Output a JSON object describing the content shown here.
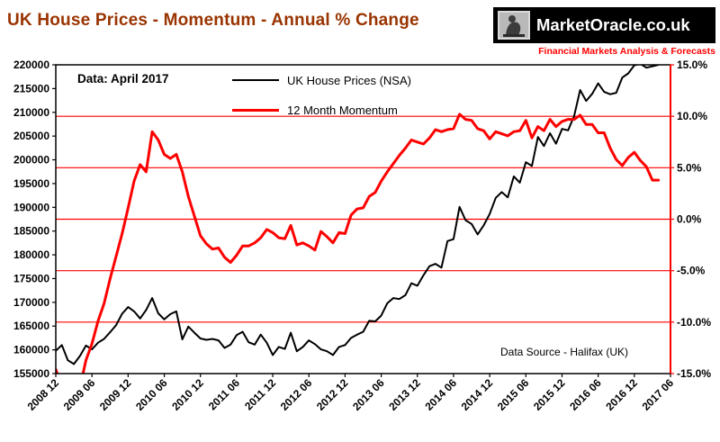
{
  "logo": {
    "text": "MarketOracle.co.uk",
    "tagline": "Financial Markets Analysis & Forecasts"
  },
  "chart_data": {
    "type": "line",
    "title": "UK House Prices - Momentum - Annual % Change",
    "data_note": "Data:  April 2017",
    "source_note": "Data Source - Halifax (UK)",
    "legend_position": "top-inside",
    "grid": "horizontal-red-lines",
    "x_start": "2008-12",
    "x_end": "2017-04",
    "x_axis_total_units": 102,
    "x_tick_labels": [
      "2008 12",
      "2009 06",
      "2009 12",
      "2010 06",
      "2010 12",
      "2011 06",
      "2011 12",
      "2012 06",
      "2012 12",
      "2013 06",
      "2013 12",
      "2014 06",
      "2014 12",
      "2015 06",
      "2015 12",
      "2016 06",
      "2016 12",
      "2017 06"
    ],
    "left_axis": {
      "min": 155000,
      "max": 220000,
      "step": 5000
    },
    "right_axis": {
      "min": -15,
      "max": 15,
      "step": 5
    },
    "left_tick_labels": [
      "220000",
      "215000",
      "210000",
      "205000",
      "200000",
      "195000",
      "190000",
      "185000",
      "180000",
      "175000",
      "170000",
      "165000",
      "160000",
      "155000"
    ],
    "right_tick_labels": [
      "15.0%",
      "10.0%",
      "5.0%",
      "0.0%",
      "-5.0%",
      "-10.0%",
      "-15.0%"
    ],
    "gridlines_percent": [
      10,
      5,
      0,
      -5,
      -10
    ],
    "colors": {
      "title": "#993300",
      "grid": "#ff0000",
      "axis": "#000000",
      "axis_right": "#ff0000",
      "logo_bg": "#000000",
      "logo_text": "#ffffff",
      "tagline": "#ff0000"
    },
    "series": [
      {
        "name": "UK House Prices (NSA)",
        "axis": "left",
        "color": "#000000",
        "width": 2,
        "values": [
          159800,
          161000,
          157800,
          157000,
          158700,
          160900,
          160100,
          161500,
          162300,
          163700,
          165200,
          167600,
          169000,
          168100,
          166600,
          168400,
          170900,
          167700,
          166400,
          167500,
          168100,
          162200,
          164900,
          163600,
          162400,
          162100,
          162300,
          162000,
          160400,
          161100,
          163100,
          163800,
          161600,
          161100,
          163200,
          161500,
          158900,
          160600,
          160200,
          163600,
          159700,
          160600,
          162000,
          161200,
          160100,
          159700,
          158900,
          160600,
          161000,
          162500,
          163200,
          163800,
          166100,
          166000,
          167200,
          169800,
          170900,
          170700,
          171500,
          174000,
          173500,
          175700,
          177600,
          178100,
          177300,
          182900,
          183300,
          190100,
          187300,
          186500,
          184300,
          186200,
          188600,
          192000,
          193200,
          192100,
          196500,
          195200,
          199500,
          198700,
          204800,
          202900,
          205600,
          203400,
          206500,
          206200,
          209200,
          214700,
          212400,
          213900,
          216100,
          214300,
          213800,
          214100,
          217300,
          218200,
          219900,
          220200,
          219400,
          219700,
          220000
        ]
      },
      {
        "name": "12 Month Momentum",
        "axis": "right",
        "color": "#ff0000",
        "width": 3,
        "values": [
          -14.6,
          -16.3,
          -17.4,
          -17.6,
          -16.4,
          -13.7,
          -12.1,
          -9.9,
          -8.2,
          -5.8,
          -3.6,
          -1.4,
          1.1,
          3.7,
          5.3,
          4.6,
          8.5,
          7.7,
          6.3,
          5.9,
          6.3,
          4.6,
          2.2,
          0.3,
          -1.6,
          -2.4,
          -2.9,
          -2.8,
          -3.7,
          -4.2,
          -3.5,
          -2.6,
          -2.6,
          -2.3,
          -1.8,
          -1.0,
          -1.3,
          -1.8,
          -1.9,
          -0.6,
          -2.5,
          -2.3,
          -2.6,
          -3.0,
          -1.2,
          -1.7,
          -2.3,
          -1.3,
          -1.4,
          0.4,
          1.0,
          1.1,
          2.2,
          2.6,
          3.7,
          4.6,
          5.4,
          6.2,
          6.9,
          7.7,
          7.5,
          7.3,
          7.9,
          8.7,
          8.5,
          8.7,
          8.8,
          10.2,
          9.7,
          9.6,
          8.8,
          8.6,
          7.8,
          8.5,
          8.3,
          8.1,
          8.5,
          8.6,
          9.6,
          7.9,
          9.0,
          8.6,
          9.7,
          9.0,
          9.5,
          9.7,
          9.7,
          10.1,
          9.2,
          9.2,
          8.4,
          8.4,
          6.9,
          5.8,
          5.2,
          6.0,
          6.5,
          5.7,
          5.1,
          3.8,
          3.8
        ]
      }
    ]
  }
}
